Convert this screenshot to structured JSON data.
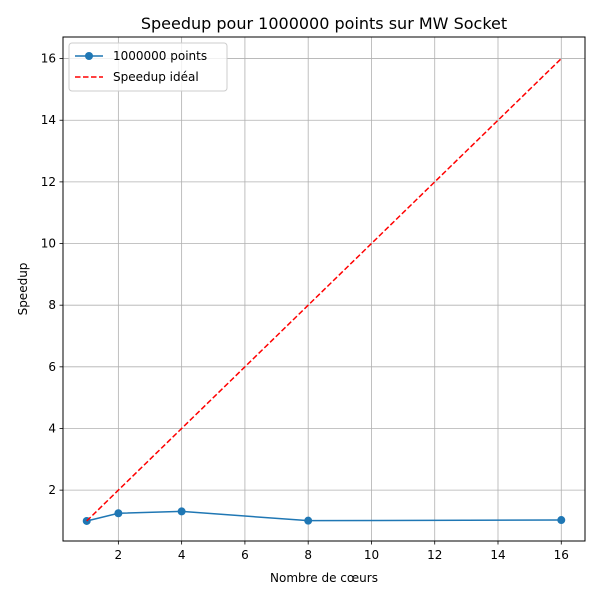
{
  "chart_data": {
    "type": "line",
    "title": "Speedup pour 1000000 points sur MW Socket",
    "xlabel": "Nombre de cœurs",
    "ylabel": "Speedup",
    "xlim": [
      0.25,
      16.75
    ],
    "ylim": [
      0.35,
      16.7
    ],
    "xticks": [
      2,
      4,
      6,
      8,
      10,
      12,
      14,
      16
    ],
    "yticks": [
      2,
      4,
      6,
      8,
      10,
      12,
      14,
      16
    ],
    "grid": true,
    "legend_position": "top-left",
    "series": [
      {
        "name": "1000000 points",
        "x": [
          1,
          2,
          4,
          8,
          16
        ],
        "y": [
          1.0,
          1.25,
          1.31,
          1.01,
          1.03
        ],
        "color": "#1f77b4",
        "style": "solid",
        "marker": "circle"
      },
      {
        "name": "Speedup idéal",
        "x": [
          1,
          16
        ],
        "y": [
          1,
          16
        ],
        "color": "#ff0000",
        "style": "dashed",
        "marker": "none"
      }
    ]
  }
}
